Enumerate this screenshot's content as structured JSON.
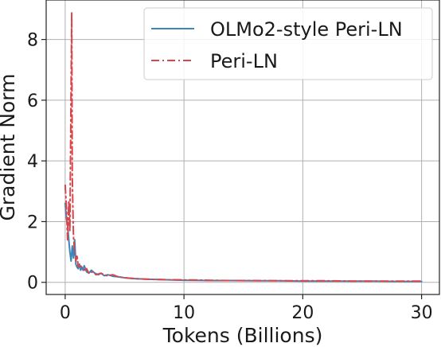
{
  "chart_data": {
    "type": "line",
    "title": "",
    "xlabel": "Tokens (Billions)",
    "ylabel": "Gradient Norm",
    "xlim": [
      -1.6,
      31.5
    ],
    "ylim": [
      -0.4,
      9.3
    ],
    "xticks": [
      0,
      10,
      20,
      30
    ],
    "yticks": [
      0,
      2,
      4,
      6,
      8
    ],
    "grid": true,
    "legend_position": "top-right",
    "series": [
      {
        "name": "OLMo2-style Peri-LN",
        "color": "#3a87bc",
        "style": "solid",
        "x": [
          0.0,
          0.1,
          0.2,
          0.3,
          0.4,
          0.5,
          0.6,
          0.7,
          0.8,
          0.9,
          1.0,
          1.1,
          1.2,
          1.3,
          1.4,
          1.5,
          1.6,
          1.8,
          2.0,
          2.2,
          2.5,
          2.8,
          3.0,
          3.3,
          3.6,
          4.0,
          4.5,
          5.0,
          5.5,
          6.0,
          7.0,
          8.0,
          9.0,
          10.0,
          12.0,
          14.0,
          16.0,
          18.0,
          20.0,
          22.0,
          24.0,
          26.0,
          28.0,
          30.0
        ],
        "y": [
          2.6,
          2.1,
          1.9,
          1.4,
          1.0,
          0.7,
          1.2,
          0.8,
          1.4,
          0.6,
          0.5,
          0.45,
          0.6,
          0.4,
          0.5,
          0.4,
          0.55,
          0.35,
          0.3,
          0.4,
          0.3,
          0.25,
          0.3,
          0.22,
          0.25,
          0.2,
          0.18,
          0.15,
          0.13,
          0.12,
          0.1,
          0.09,
          0.08,
          0.07,
          0.06,
          0.06,
          0.05,
          0.05,
          0.04,
          0.04,
          0.04,
          0.04,
          0.03,
          0.03
        ]
      },
      {
        "name": "Peri-LN",
        "color": "#d9454a",
        "style": "dashdot",
        "x": [
          0.0,
          0.1,
          0.2,
          0.3,
          0.4,
          0.5,
          0.55,
          0.6,
          0.65,
          0.7,
          0.8,
          0.9,
          1.0,
          1.1,
          1.2,
          1.4,
          1.6,
          1.8,
          2.0,
          2.3,
          2.6,
          3.0,
          3.5,
          4.0,
          4.5,
          5.0,
          6.0,
          7.0,
          8.0,
          10.0,
          12.0,
          14.0,
          16.0,
          18.0,
          20.0,
          22.0,
          24.0,
          26.0,
          28.0,
          30.0
        ],
        "y": [
          3.2,
          2.5,
          1.4,
          2.7,
          1.7,
          6.5,
          8.9,
          3.5,
          2.4,
          1.5,
          1.0,
          0.7,
          0.9,
          0.5,
          0.6,
          0.5,
          0.4,
          0.45,
          0.3,
          0.35,
          0.25,
          0.3,
          0.22,
          0.25,
          0.18,
          0.15,
          0.12,
          0.1,
          0.09,
          0.08,
          0.07,
          0.06,
          0.06,
          0.05,
          0.05,
          0.05,
          0.04,
          0.04,
          0.04,
          0.04
        ]
      }
    ]
  }
}
